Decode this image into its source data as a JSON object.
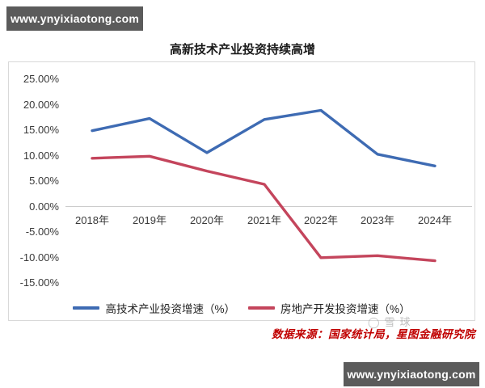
{
  "banners": {
    "top": "www.ynyixiaotong.com",
    "bottom": "www.ynyixiaotong.com"
  },
  "title": "高新技术产业投资持续高增",
  "chart_data": {
    "type": "line",
    "categories": [
      "2018年",
      "2019年",
      "2020年",
      "2021年",
      "2022年",
      "2023年",
      "2024年"
    ],
    "series": [
      {
        "name": "高技术产业投资增速（%）",
        "color": "#3e6bb3",
        "values": [
          14.9,
          17.3,
          10.6,
          17.1,
          18.9,
          10.3,
          8.0
        ]
      },
      {
        "name": "房地产开发投资增速（%）",
        "color": "#c4455c",
        "values": [
          9.5,
          9.9,
          7.0,
          4.4,
          -10.0,
          -9.6,
          -10.6
        ]
      }
    ],
    "title": "高新技术产业投资持续高增",
    "xlabel": "",
    "ylabel": "",
    "ylim": [
      -15,
      25
    ],
    "ytick_step": 5,
    "ytick_labels": [
      "25.00%",
      "20.00%",
      "15.00%",
      "10.00%",
      "5.00%",
      "0.00%",
      "-5.00%",
      "-10.00%",
      "-15.00%"
    ],
    "grid": false,
    "legend_position": "bottom",
    "axis_line_color": "#cccccc"
  },
  "source_note": "数据来源：国家统计局，星图金融研究院",
  "watermark": {
    "icon": "circle-logo",
    "text": "◯雪球"
  },
  "colors": {
    "banner_background": "#5b5b5b",
    "banner_text": "#ffffff",
    "series_blue": "#3e6bb3",
    "series_red": "#c4455c",
    "source_note_red": "#c00000",
    "chart_border": "#d9d9d9"
  }
}
